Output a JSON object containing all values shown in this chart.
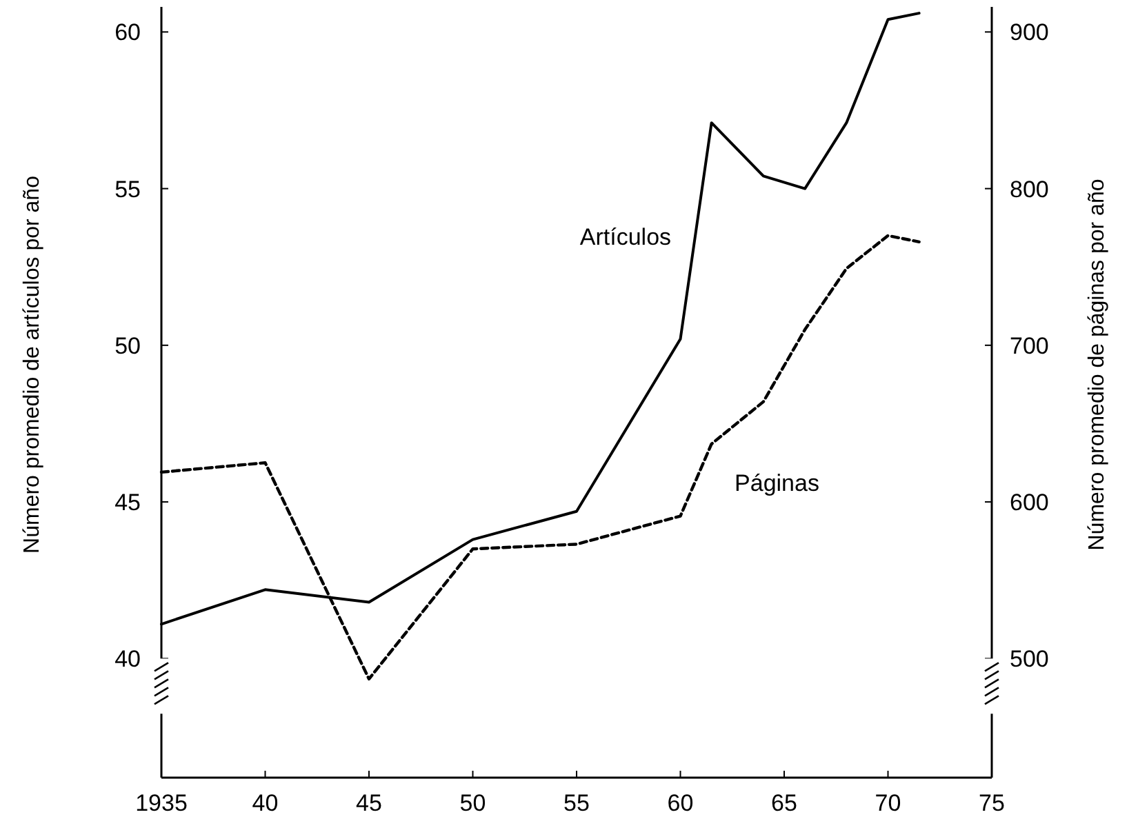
{
  "chart_data": {
    "type": "line",
    "xlabel": null,
    "ylabel": "Número promedio de artículos por año",
    "y2label": "Número promedio de páginas por año",
    "xlim": [
      1935,
      1975
    ],
    "xticks": [
      1935,
      {
        "value": 1940,
        "label": "40"
      },
      {
        "value": 1945,
        "label": "45"
      },
      {
        "value": 1950,
        "label": "50"
      },
      {
        "value": 1955,
        "label": "55"
      },
      {
        "value": 1960,
        "label": "60"
      },
      {
        "value": 1965,
        "label": "65"
      },
      {
        "value": 1970,
        "label": "70"
      },
      {
        "value": 1975,
        "label": "75"
      }
    ],
    "ylim": [
      36.2,
      60.8
    ],
    "yticks": [
      40,
      45,
      50,
      55,
      60
    ],
    "y2lim": [
      424,
      916
    ],
    "y2ticks": [
      500,
      600,
      700,
      800,
      900
    ],
    "grid": false,
    "marker": "none",
    "series": [
      {
        "name": "Artículos",
        "color": "#000000",
        "line_style": "solid",
        "x": [
          1935,
          1940,
          1945,
          1950,
          1955,
          1960,
          1961.5,
          1964,
          1966,
          1968,
          1970,
          1971.5
        ],
        "values": [
          41.1,
          42.2,
          41.8,
          43.8,
          44.7,
          50.2,
          57.1,
          55.4,
          55.0,
          57.1,
          60.4,
          60.6
        ]
      },
      {
        "name": "Páginas",
        "color": "#000000",
        "line_style": "dashed",
        "axis": "y2",
        "x": [
          1935,
          1940,
          1945,
          1950,
          1955,
          1960,
          1961.5,
          1964,
          1966,
          1968,
          1970,
          1971.5
        ],
        "values": [
          619,
          625,
          487,
          570,
          573,
          591,
          637,
          664,
          710,
          749,
          770,
          766
        ]
      }
    ]
  }
}
